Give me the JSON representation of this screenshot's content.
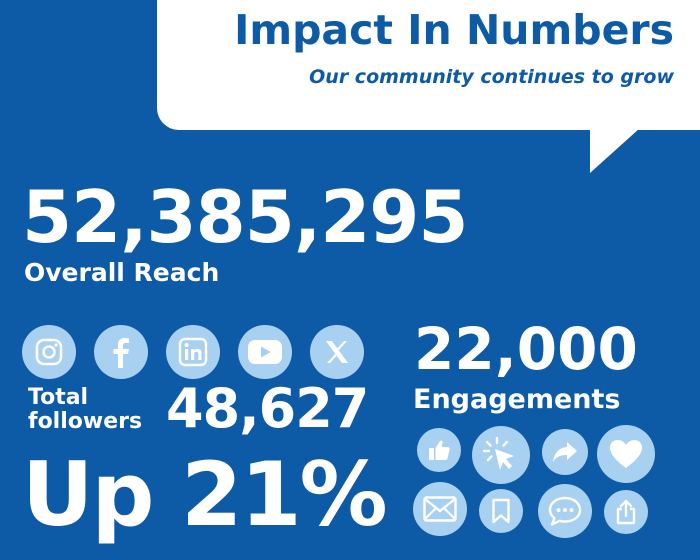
{
  "header": {
    "title": "Impact In Numbers",
    "subtitle": "Our community continues to grow"
  },
  "reach": {
    "value": "52,385,295",
    "label": "Overall Reach"
  },
  "social": {
    "icons": [
      "instagram-icon",
      "facebook-icon",
      "linkedin-icon",
      "youtube-icon",
      "x-icon"
    ],
    "followers_label_line1": "Total",
    "followers_label_line2": "followers",
    "followers_value": "48,627",
    "growth": "Up 21%"
  },
  "engagements": {
    "value": "22,000",
    "label": "Engagements",
    "icons": [
      "thumbs-up-icon",
      "click-icon",
      "share-arrow-icon",
      "heart-icon",
      "mail-icon",
      "bookmark-icon",
      "chat-bubble-icon",
      "upload-icon"
    ]
  },
  "colors": {
    "background": "#0d5aa6",
    "icon_circle": "#a8d0f0",
    "text": "#ffffff"
  }
}
